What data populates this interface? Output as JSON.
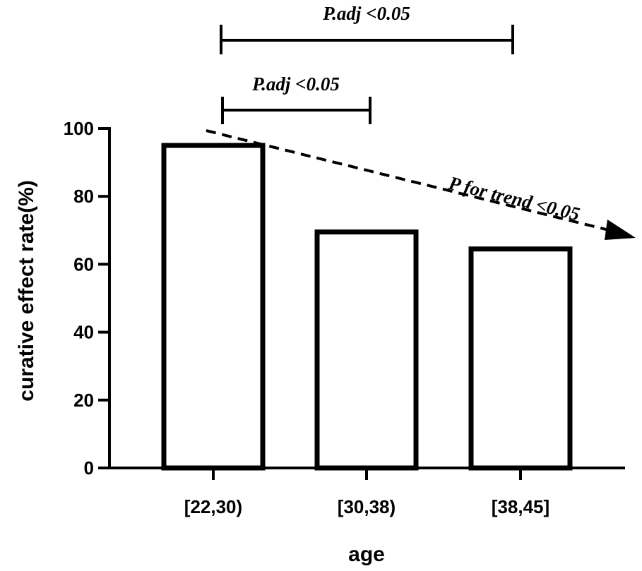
{
  "chart_data": {
    "type": "bar",
    "categories": [
      "[22,30)",
      "[30,38)",
      "[38,45]"
    ],
    "values": [
      95,
      69.5,
      64.5
    ],
    "xlabel": "age",
    "ylabel": "curative effect rate(%)",
    "ylim": [
      0,
      100
    ],
    "yticks": [
      0,
      20,
      40,
      60,
      80,
      100
    ],
    "grid": false,
    "annotations": {
      "bracket_1": {
        "text": "P.adj <0.05",
        "from": "[22,30)",
        "to": "[38,45]"
      },
      "bracket_2": {
        "text": "P.adj <0.05",
        "from": "[22,30)",
        "to": "[30,38)"
      },
      "trend": {
        "text": "P for trend <0.05"
      }
    }
  }
}
